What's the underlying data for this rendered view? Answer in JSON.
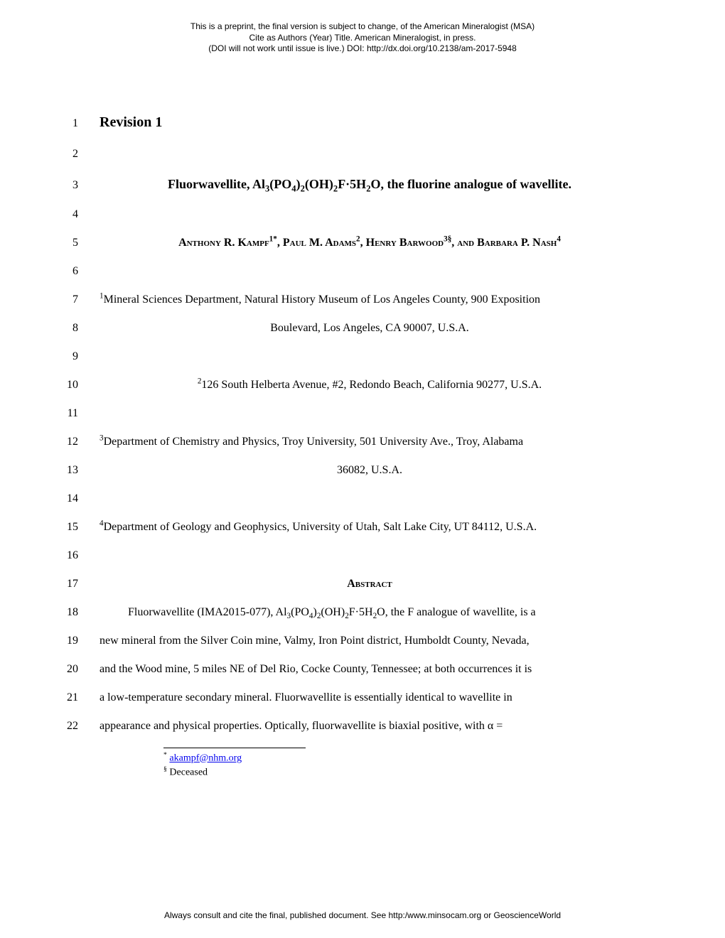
{
  "header": {
    "line1": "This is a preprint, the final version is subject to change, of the American Mineralogist (MSA)",
    "line2": "Cite as Authors (Year) Title. American Mineralogist, in press.",
    "line3": "(DOI will not work until issue is live.) DOI: http://dx.doi.org/10.2138/am-2017-5948"
  },
  "lines": {
    "l1_num": "1",
    "l1_text": "Revision 1",
    "l2_num": "2",
    "l3_num": "3",
    "l4_num": "4",
    "l5_num": "5",
    "l6_num": "6",
    "l7_num": "7",
    "l8_num": "8",
    "l8_text": "Boulevard, Los Angeles, CA 90007, U.S.A.",
    "l9_num": "9",
    "l10_num": "10",
    "l11_num": "11",
    "l12_num": "12",
    "l13_num": "13",
    "l13_text": "36082, U.S.A.",
    "l14_num": "14",
    "l15_num": "15",
    "l16_num": "16",
    "l17_num": "17",
    "l17_text": "Abstract",
    "l18_num": "18",
    "l19_num": "19",
    "l19_text": "new mineral from the Silver Coin mine, Valmy, Iron Point district, Humboldt County, Nevada,",
    "l20_num": "20",
    "l20_text": "and the Wood mine, 5 miles NE of Del Rio, Cocke County, Tennessee; at both occurrences it is",
    "l21_num": "21",
    "l21_text": "a low-temperature secondary mineral. Fluorwavellite is essentially identical to wavellite in",
    "l22_num": "22",
    "l22_text": "appearance and physical properties. Optically, fluorwavellite is biaxial positive, with α ="
  },
  "title_parts": {
    "pre": "Fluorwavellite, Al",
    "sub1": "3",
    "p2": "(PO",
    "sub2": "4",
    "p3": ")",
    "sub3": "2",
    "p4": "(OH)",
    "sub4": "2",
    "p5": "F·5H",
    "sub5": "2",
    "p6": "O, the fluorine analogue of wavellite."
  },
  "authors_parts": {
    "a1": "Anthony R. Kampf",
    "s1": "1*",
    "a2": ", Paul M. Adams",
    "s2": "2",
    "a3": ", Henry Barwood",
    "s3": "3§",
    "a4": ", and Barbara P. Nash",
    "s4": "4"
  },
  "affil": {
    "a1_sup": "1",
    "a1_text": "Mineral Sciences Department, Natural History Museum of Los Angeles County, 900 Exposition",
    "a2_sup": "2",
    "a2_text": "126 South Helberta Avenue, #2, Redondo Beach, California 90277, U.S.A.",
    "a3_sup": "3",
    "a3_text": "Department of Chemistry and Physics, Troy University, 501 University Ave., Troy, Alabama",
    "a4_sup": "4",
    "a4_text": "Department of Geology and Geophysics, University of Utah, Salt Lake City, UT 84112, U.S.A."
  },
  "abstract_l18": {
    "pre": "Fluorwavellite (IMA2015-077), Al",
    "s1": "3",
    "p2": "(PO",
    "s2": "4",
    "p3": ")",
    "s3": "2",
    "p4": "(OH)",
    "s4": "2",
    "p5": "F·5H",
    "s5": "2",
    "p6": "O, the F analogue of wavellite, is a"
  },
  "footnotes": {
    "f1_mark": "*",
    "f1_link": "akampf@nhm.org",
    "f2_mark": "§",
    "f2_text": " Deceased"
  },
  "footer": "Always consult and cite the final, published document. See http:/www.minsocam.org or GeoscienceWorld"
}
